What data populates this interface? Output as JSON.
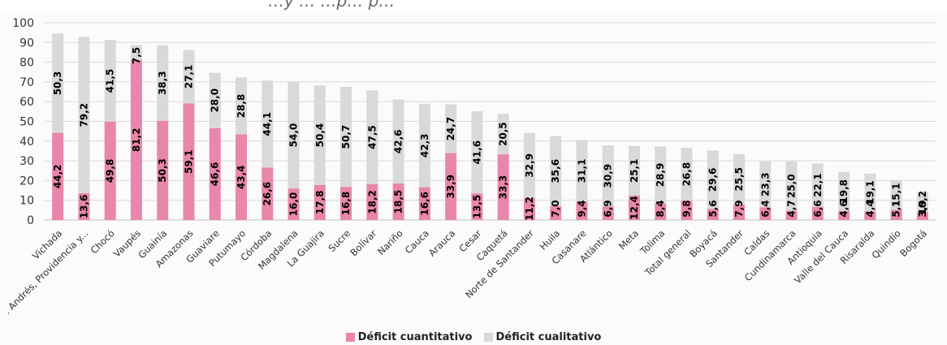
{
  "chart_data": {
    "type": "bar",
    "stacked": true,
    "title": "…y … …p… p…",
    "categories": [
      "Vichada",
      ". Andrés, Providencia y...",
      "Chocó",
      "Vaupés",
      "Guainía",
      "Amazonas",
      "Guaviare",
      "Putumayo",
      "Córdoba",
      "Magdalena",
      "La Guajira",
      "Sucre",
      "Bolívar",
      "Nariño",
      "Cauca",
      "Arauca",
      "Cesar",
      "Caquetá",
      "Norte de Santander",
      "Huila",
      "Casanare",
      "Atlántico",
      "Meta",
      "Tolima",
      "Total general",
      "Boyacá",
      "Santander",
      "Caldas",
      "Cundinamarca",
      "Antioquia",
      "Valle del Cauca",
      "Risaralda",
      "Quindío",
      "Bogotá"
    ],
    "series": [
      {
        "name": "Déficit cuantitativo",
        "color": "#e986ac",
        "values": [
          44.2,
          13.6,
          49.8,
          81.2,
          50.3,
          59.1,
          46.6,
          43.4,
          26.6,
          16.0,
          17.8,
          16.8,
          18.2,
          18.5,
          16.6,
          33.9,
          13.5,
          33.3,
          11.2,
          7.0,
          9.4,
          6.9,
          12.4,
          8.4,
          9.8,
          5.6,
          7.9,
          6.4,
          4.7,
          6.6,
          4.6,
          4.4,
          5.1,
          3.9
        ],
        "labels": [
          "44,2",
          "13,6",
          "49,8",
          "81,2",
          "50,3",
          "59,1",
          "46,6",
          "43,4",
          "26,6",
          "16,0",
          "17,8",
          "16,8",
          "18,2",
          "18,5",
          "16,6",
          "33,9",
          "13,5",
          "33,3",
          "11,2",
          "7,0",
          "9,4",
          "6,9",
          "12,4",
          "8,4",
          "9,8",
          "5,6",
          "7,9",
          "6,4",
          "4,7",
          "6,6",
          "4,6",
          "4,4",
          "5,1",
          "3,9"
        ]
      },
      {
        "name": "Déficit cualitativo",
        "color": "#d9d9d9",
        "values": [
          50.3,
          79.2,
          41.5,
          7.5,
          38.3,
          27.1,
          28.0,
          28.8,
          44.1,
          54.0,
          50.4,
          50.7,
          47.5,
          42.6,
          42.3,
          24.7,
          41.6,
          20.5,
          32.9,
          35.6,
          31.1,
          30.9,
          25.1,
          28.9,
          26.8,
          29.6,
          25.5,
          23.3,
          25.0,
          22.1,
          19.8,
          19.1,
          15.1,
          10.2
        ],
        "labels": [
          "50,3",
          "79,2",
          "41,5",
          "7,5",
          "38,3",
          "27,1",
          "28,0",
          "28,8",
          "44,1",
          "54,0",
          "50,4",
          "50,7",
          "47,5",
          "42,6",
          "42,3",
          "24,7",
          "41,6",
          "20,5",
          "32,9",
          "35,6",
          "31,1",
          "30,9",
          "25,1",
          "28,9",
          "26,8",
          "29,6",
          "25,5",
          "23,3",
          "25,0",
          "22,1",
          "19,8",
          "19,1",
          "15,1",
          "10,2"
        ]
      }
    ],
    "ylim": [
      0,
      100
    ],
    "yticks": [
      0,
      10,
      20,
      30,
      40,
      50,
      60,
      70,
      80,
      90,
      100
    ],
    "grid": true,
    "legend_position": "bottom"
  }
}
